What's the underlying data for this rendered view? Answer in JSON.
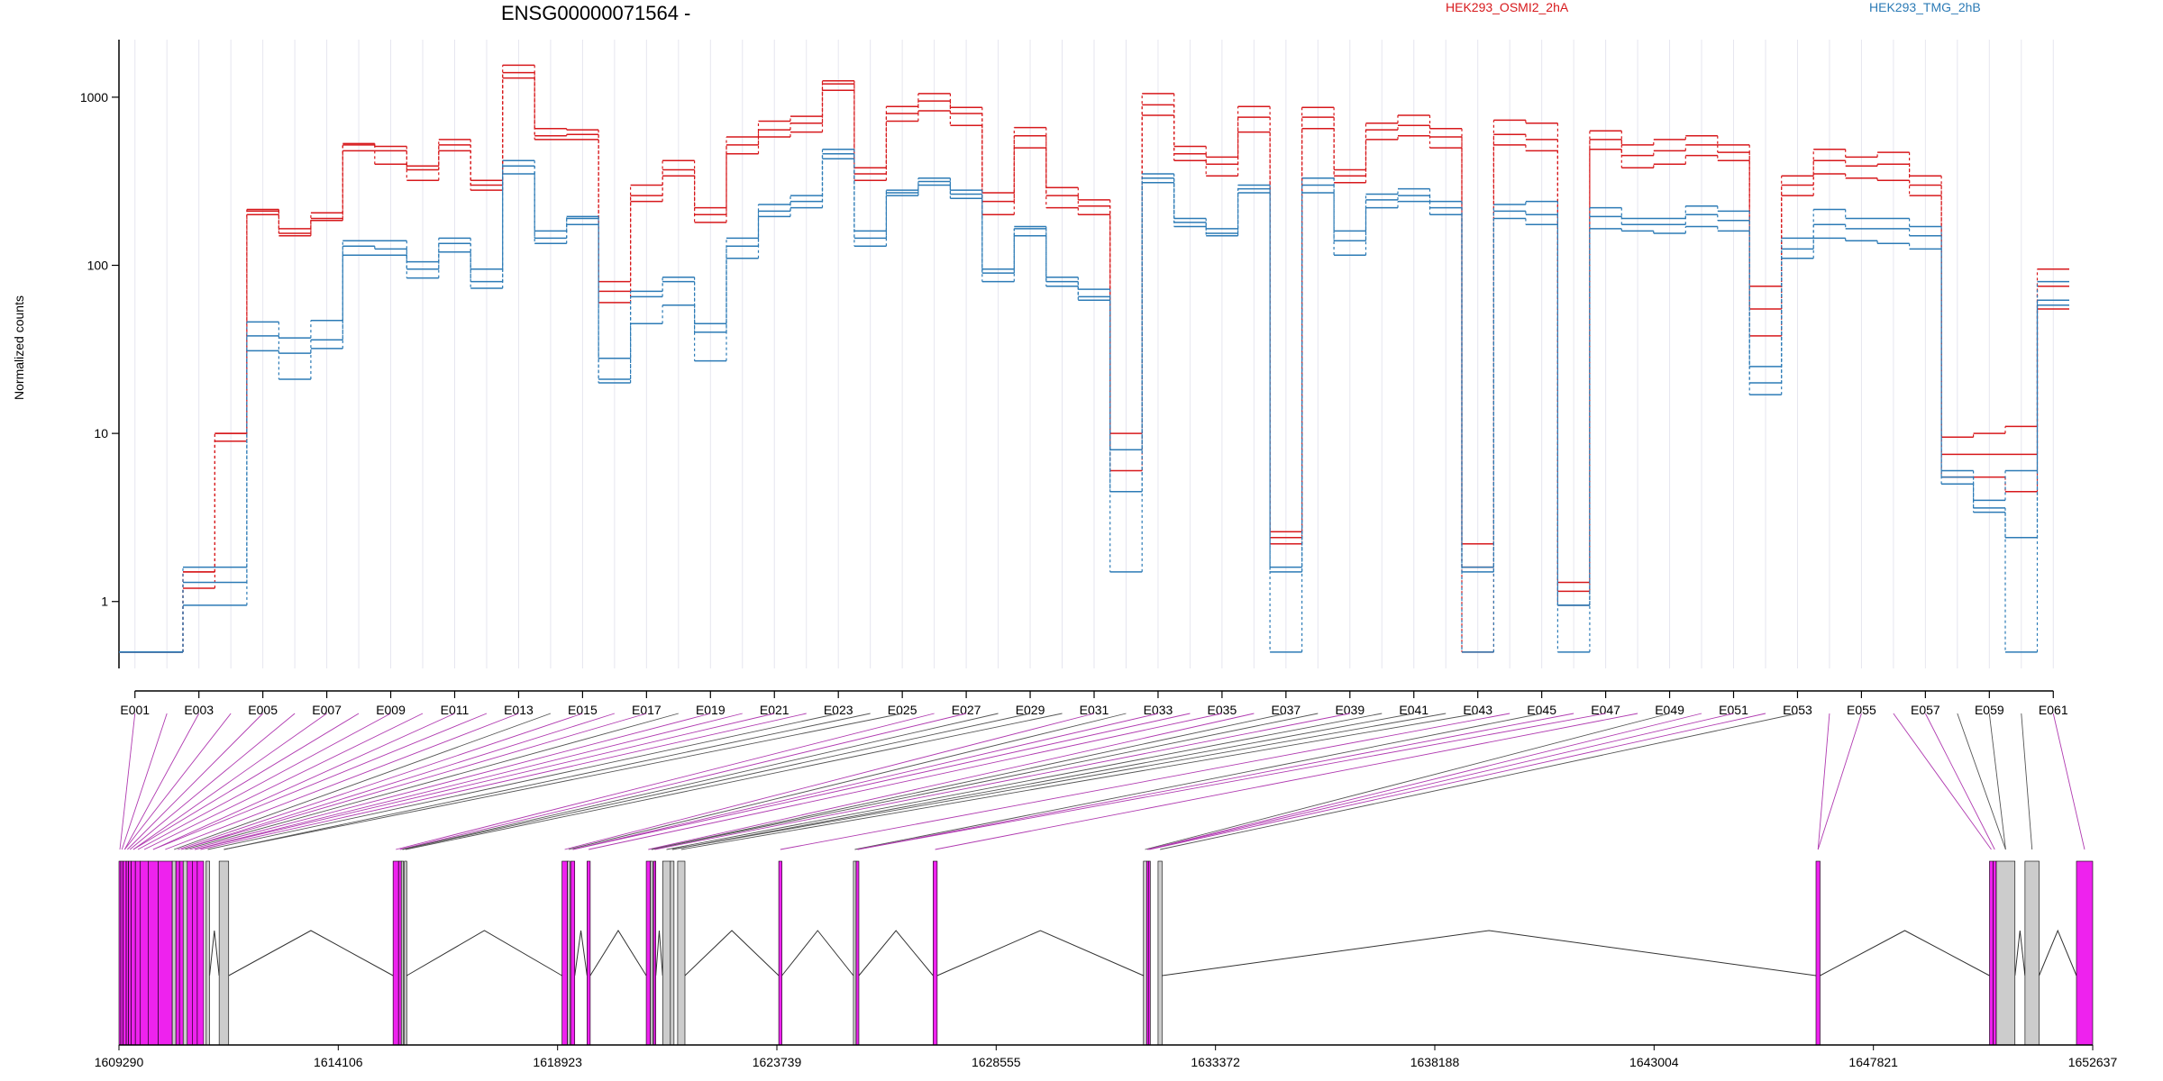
{
  "chart_data": {
    "type": "line",
    "title": "ENSG00000071564 -",
    "ylabel": "Normalized counts",
    "yscale": "log",
    "ylim": [
      0.4,
      2200
    ],
    "yticks": [
      1,
      10,
      100,
      1000
    ],
    "ytick_labels": [
      "1",
      "10",
      "100",
      "1000"
    ],
    "legend_placement": "top-right",
    "categories": [
      "E001",
      "E002",
      "E003",
      "E004",
      "E005",
      "E006",
      "E007",
      "E008",
      "E009",
      "E010",
      "E011",
      "E012",
      "E013",
      "E014",
      "E015",
      "E016",
      "E017",
      "E018",
      "E019",
      "E020",
      "E021",
      "E022",
      "E023",
      "E024",
      "E025",
      "E026",
      "E027",
      "E028",
      "E029",
      "E030",
      "E031",
      "E032",
      "E033",
      "E034",
      "E035",
      "E036",
      "E037",
      "E038",
      "E039",
      "E040",
      "E041",
      "E042",
      "E043",
      "E044",
      "E045",
      "E046",
      "E047",
      "E048",
      "E049",
      "E050",
      "E051",
      "E052",
      "E053",
      "E054",
      "E055",
      "E056",
      "E057",
      "E058",
      "E059",
      "E060",
      "E061"
    ],
    "x_tick_labels": [
      "E001",
      "E003",
      "E005",
      "E007",
      "E009",
      "E011",
      "E013",
      "E015",
      "E017",
      "E019",
      "E021",
      "E023",
      "E025",
      "E027",
      "E029",
      "E031",
      "E033",
      "E035",
      "E037",
      "E039",
      "E041",
      "E043",
      "E045",
      "E047",
      "E049",
      "E051",
      "E053",
      "E055",
      "E057",
      "E059",
      "E061"
    ],
    "groups": [
      {
        "name": "HEK293_OSMI2_2hA",
        "color": "#d7191c"
      },
      {
        "name": "HEK293_TMG_2hB",
        "color": "#2c7bb6"
      }
    ],
    "series": [
      {
        "group": 0,
        "values": [
          0.5,
          0.5,
          1.5,
          10,
          215,
          165,
          205,
          530,
          510,
          390,
          560,
          320,
          1550,
          650,
          640,
          80,
          300,
          420,
          220,
          580,
          720,
          770,
          1250,
          380,
          880,
          1050,
          870,
          270,
          660,
          290,
          245,
          10,
          1050,
          510,
          440,
          880,
          2.6,
          870,
          370,
          700,
          780,
          650,
          2.2,
          730,
          700,
          1.3,
          630,
          520,
          560,
          590,
          520,
          75,
          340,
          490,
          440,
          470,
          340,
          9.5,
          10,
          11,
          95
        ]
      },
      {
        "group": 0,
        "values": [
          0.5,
          0.5,
          1.2,
          9,
          200,
          150,
          185,
          480,
          400,
          320,
          480,
          280,
          1300,
          560,
          560,
          60,
          240,
          340,
          180,
          460,
          580,
          620,
          1100,
          320,
          720,
          830,
          680,
          200,
          500,
          220,
          200,
          6,
          780,
          420,
          340,
          620,
          2.2,
          650,
          310,
          560,
          590,
          500,
          0.5,
          520,
          480,
          0.95,
          490,
          380,
          400,
          450,
          420,
          38,
          260,
          350,
          330,
          320,
          260,
          5.5,
          5.5,
          4.5,
          55
        ]
      },
      {
        "group": 0,
        "values": [
          0.5,
          0.5,
          1.5,
          10,
          210,
          155,
          190,
          520,
          480,
          370,
          520,
          300,
          1400,
          590,
          600,
          70,
          260,
          370,
          200,
          520,
          640,
          700,
          1200,
          350,
          800,
          950,
          800,
          240,
          590,
          260,
          225,
          8,
          900,
          460,
          400,
          760,
          2.4,
          760,
          340,
          640,
          680,
          580,
          1.6,
          600,
          560,
          1.15,
          560,
          450,
          480,
          520,
          470,
          55,
          300,
          420,
          390,
          400,
          300,
          7.5,
          7.5,
          7.5,
          75
        ]
      },
      {
        "group": 1,
        "values": [
          0.5,
          0.5,
          1.6,
          1.6,
          46,
          37,
          47,
          140,
          140,
          105,
          145,
          95,
          420,
          160,
          195,
          28,
          70,
          85,
          45,
          145,
          230,
          260,
          490,
          160,
          280,
          330,
          280,
          95,
          170,
          85,
          72,
          8,
          350,
          190,
          165,
          300,
          1.6,
          330,
          160,
          265,
          285,
          240,
          1.6,
          230,
          240,
          0.95,
          220,
          190,
          190,
          225,
          210,
          25,
          145,
          215,
          190,
          190,
          170,
          6,
          4,
          6,
          80
        ]
      },
      {
        "group": 1,
        "values": [
          0.5,
          0.5,
          0.95,
          0.95,
          31,
          21,
          32,
          115,
          115,
          84,
          120,
          73,
          350,
          135,
          175,
          20,
          45,
          58,
          27,
          110,
          195,
          220,
          430,
          130,
          260,
          300,
          250,
          80,
          150,
          75,
          62,
          1.5,
          310,
          170,
          150,
          270,
          0.5,
          270,
          115,
          220,
          240,
          200,
          0.5,
          190,
          175,
          0.5,
          165,
          160,
          155,
          170,
          160,
          17,
          110,
          145,
          140,
          135,
          125,
          5,
          3.4,
          0.5,
          58
        ]
      },
      {
        "group": 1,
        "values": [
          0.5,
          0.5,
          1.3,
          1.3,
          38,
          30,
          36,
          130,
          125,
          95,
          135,
          80,
          390,
          145,
          190,
          21,
          65,
          80,
          40,
          130,
          210,
          240,
          460,
          145,
          270,
          315,
          265,
          90,
          165,
          80,
          65,
          4.5,
          330,
          180,
          155,
          285,
          1.5,
          300,
          140,
          245,
          260,
          220,
          1.5,
          210,
          200,
          0.95,
          195,
          175,
          175,
          200,
          185,
          20,
          125,
          175,
          165,
          165,
          150,
          5.5,
          3.6,
          2.4,
          62
        ]
      }
    ],
    "genome_axis": {
      "labels": [
        "1609290",
        "1614106",
        "1618923",
        "1623739",
        "1628555",
        "1633372",
        "1638188",
        "1643004",
        "1647821",
        "1652637"
      ]
    },
    "gene_model": {
      "colors": {
        "significant": "#ee22ee",
        "normal": "#cccccc"
      }
    }
  }
}
